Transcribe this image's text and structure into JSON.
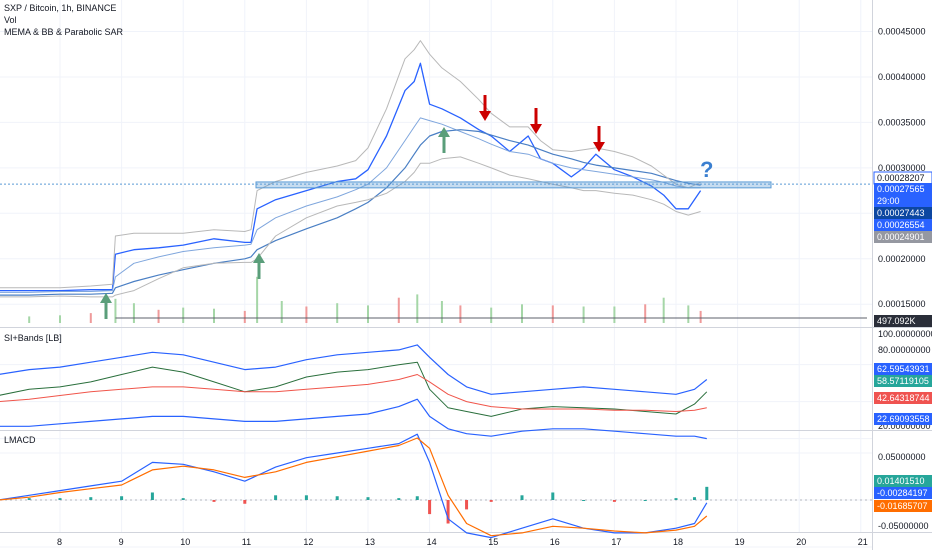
{
  "header": {
    "symbol": "SXP / Bitcoin, 1h, BINANCE",
    "vol_label": "Vol",
    "indicator_label": "MEMA & BB & Parabolic SAR"
  },
  "panes": {
    "rsi_title": "SI+Bands [LB]",
    "macd_title": "LMACD"
  },
  "colors": {
    "price_line": "#2962ff",
    "band": "#b8b8b8",
    "ema": "#4a7fc4",
    "support_zone": "#5b9bd5",
    "down_arrow": "#cc0000",
    "up_arrow": "#5a9e7a",
    "question_mark": "#3a7fd0",
    "rsi_line": "#2a6f3c",
    "rsi_mid": "#f0554a",
    "macd_line": "#2962ff",
    "macd_signal": "#ff6d00",
    "hist_pos": "#26a69a",
    "hist_neg": "#ef5350"
  },
  "price_axis": {
    "ticks": [
      "0.00045000",
      "0.00040000",
      "0.00035000",
      "0.00030000",
      "0.00020000",
      "0.00015000"
    ],
    "tags": [
      {
        "text": "0.00028207",
        "style": "outline"
      },
      {
        "text": "0.00027565",
        "style": "blue"
      },
      {
        "text": "29:00",
        "style": "blue"
      },
      {
        "text": "0.00027443",
        "style": "navy"
      },
      {
        "text": "0.00026554",
        "style": "blue"
      },
      {
        "text": "0.00024901",
        "style": "gray"
      },
      {
        "text": "497.092K",
        "style": "dark"
      }
    ]
  },
  "rsi_axis": {
    "ticks": [
      "100.00000000",
      "80.00000000",
      "20.00000000"
    ],
    "tags": [
      {
        "text": "62.59543931",
        "style": "blue"
      },
      {
        "text": "58.57119105",
        "style": "teal"
      },
      {
        "text": "42.64318744",
        "style": "red"
      },
      {
        "text": "22.69093558",
        "style": "blue"
      }
    ]
  },
  "macd_axis": {
    "ticks": [
      "0.05000000",
      "-0.05000000"
    ],
    "tags": [
      {
        "text": "0.01401510",
        "style": "teal"
      },
      {
        "text": "-0.00284197",
        "style": "blue"
      },
      {
        "text": "-0.01685707",
        "style": "orange"
      }
    ]
  },
  "time_axis": {
    "ticks": [
      "8",
      "9",
      "10",
      "11",
      "12",
      "13",
      "14",
      "15",
      "16",
      "17",
      "18",
      "19",
      "20",
      "21"
    ]
  },
  "annotations": {
    "question": "?"
  },
  "chart_data": [
    {
      "type": "line",
      "pane": "price",
      "x_unit": "day",
      "x": [
        7.0,
        7.5,
        8.0,
        8.5,
        8.85,
        8.9,
        9.2,
        9.6,
        10.0,
        10.5,
        11.0,
        11.1,
        11.2,
        11.5,
        12.0,
        12.5,
        12.8,
        13.0,
        13.3,
        13.6,
        13.75,
        13.85,
        14.0,
        14.2,
        14.5,
        14.8,
        15.0,
        15.3,
        15.6,
        15.8,
        16.0,
        16.3,
        16.5,
        16.7,
        17.0,
        17.3,
        17.6,
        17.8,
        18.0,
        18.2,
        18.4
      ],
      "series": [
        {
          "values": [
            0.000165,
            0.000165,
            0.000165,
            0.000166,
            0.000166,
            0.000205,
            0.00021,
            0.000212,
            0.000215,
            0.000222,
            0.000218,
            0.000218,
            0.000255,
            0.000265,
            0.000275,
            0.000285,
            0.000288,
            0.000298,
            0.000335,
            0.000385,
            0.000395,
            0.000415,
            0.00037,
            0.000365,
            0.000355,
            0.000342,
            0.000335,
            0.000318,
            0.000335,
            0.00031,
            0.000305,
            0.00029,
            0.0003,
            0.000315,
            0.000298,
            0.00029,
            0.00028,
            0.00027,
            0.000255,
            0.000255,
            0.000275
          ]
        },
        {
          "values": [
            0.000163,
            0.000163,
            0.000164,
            0.000164,
            0.000165,
            0.00018,
            0.000195,
            0.000202,
            0.000208,
            0.000212,
            0.000215,
            0.000216,
            0.000232,
            0.000245,
            0.000258,
            0.000268,
            0.000276,
            0.000282,
            0.0003,
            0.00033,
            0.000345,
            0.000355,
            0.000352,
            0.000348,
            0.00034,
            0.000332,
            0.000326,
            0.000318,
            0.000315,
            0.00031,
            0.000305,
            0.0003,
            0.000298,
            0.000296,
            0.000293,
            0.00029,
            0.000287,
            0.000284,
            0.00028,
            0.000278,
            0.000278
          ]
        },
        {
          "values": [
            0.00016,
            0.00016,
            0.000161,
            0.000161,
            0.000162,
            0.000168,
            0.000175,
            0.000182,
            0.000188,
            0.000195,
            0.0002,
            0.000202,
            0.00021,
            0.00022,
            0.000233,
            0.000245,
            0.000255,
            0.000262,
            0.000278,
            0.0003,
            0.000315,
            0.000325,
            0.000335,
            0.00034,
            0.000342,
            0.00034,
            0.000336,
            0.00033,
            0.000325,
            0.00032,
            0.000315,
            0.00031,
            0.000306,
            0.000303,
            0.0003,
            0.000297,
            0.000294,
            0.00029,
            0.000286,
            0.000283,
            0.000281
          ]
        },
        {
          "values": [
            0.000168,
            0.000168,
            0.000168,
            0.00017,
            0.000172,
            0.000225,
            0.000228,
            0.000228,
            0.000228,
            0.000232,
            0.00023,
            0.000232,
            0.000275,
            0.000285,
            0.000295,
            0.000302,
            0.000308,
            0.000322,
            0.000365,
            0.00042,
            0.00043,
            0.00044,
            0.000425,
            0.00041,
            0.000395,
            0.000375,
            0.00036,
            0.000345,
            0.000345,
            0.00033,
            0.00032,
            0.000318,
            0.00032,
            0.000322,
            0.000318,
            0.000312,
            0.000302,
            0.000292,
            0.000282,
            0.000278,
            0.000284
          ]
        },
        {
          "values": [
            0.000158,
            0.000158,
            0.000159,
            0.000158,
            0.000158,
            0.00016,
            0.000165,
            0.000178,
            0.00019,
            0.000195,
            0.000196,
            0.000196,
            0.0002,
            0.000225,
            0.000245,
            0.000258,
            0.000262,
            0.000265,
            0.000272,
            0.000285,
            0.000295,
            0.000305,
            0.000305,
            0.00031,
            0.000312,
            0.000305,
            0.0003,
            0.000292,
            0.000288,
            0.000285,
            0.000282,
            0.000278,
            0.000275,
            0.000275,
            0.000272,
            0.00027,
            0.000265,
            0.00026,
            0.000252,
            0.000248,
            0.000252
          ]
        }
      ]
    },
    {
      "type": "bar",
      "pane": "volume",
      "x_unit": "day",
      "x": [
        7.0,
        7.5,
        8.0,
        8.5,
        8.9,
        9.2,
        9.6,
        10.0,
        10.5,
        11.0,
        11.2,
        11.6,
        12.0,
        12.5,
        13.0,
        13.5,
        13.8,
        14.2,
        14.5,
        15.0,
        15.5,
        16.0,
        16.5,
        17.0,
        17.5,
        17.8,
        18.2,
        18.4
      ],
      "values": [
        80,
        60,
        70,
        90,
        220,
        180,
        120,
        140,
        130,
        110,
        420,
        200,
        150,
        180,
        160,
        230,
        260,
        200,
        160,
        140,
        170,
        160,
        150,
        150,
        170,
        230,
        160,
        110
      ]
    },
    {
      "type": "line",
      "pane": "rsi_bands",
      "x_unit": "day",
      "x": [
        7.0,
        7.5,
        8.0,
        8.5,
        9.0,
        9.5,
        10.0,
        10.5,
        11.0,
        11.5,
        12.0,
        12.5,
        13.0,
        13.5,
        13.8,
        14.0,
        14.3,
        14.6,
        15.0,
        15.5,
        16.0,
        16.5,
        17.0,
        17.5,
        18.0,
        18.3,
        18.5
      ],
      "series": [
        {
          "values": [
            55,
            60,
            62,
            66,
            72,
            78,
            74,
            66,
            58,
            62,
            70,
            74,
            76,
            80,
            82,
            60,
            45,
            42,
            38,
            44,
            46,
            45,
            44,
            42,
            40,
            48,
            58
          ]
        },
        {
          "values": [
            50,
            52,
            55,
            58,
            60,
            62,
            62,
            60,
            58,
            58,
            60,
            62,
            64,
            68,
            72,
            66,
            56,
            50,
            46,
            44,
            44,
            44,
            43,
            43,
            42,
            43,
            45
          ]
        },
        {
          "values": [
            72,
            76,
            78,
            82,
            86,
            90,
            88,
            82,
            76,
            78,
            84,
            88,
            90,
            92,
            96,
            86,
            72,
            62,
            56,
            58,
            60,
            62,
            60,
            58,
            56,
            60,
            68
          ]
        },
        {
          "values": [
            30,
            30,
            32,
            34,
            36,
            38,
            38,
            36,
            34,
            34,
            36,
            38,
            40,
            46,
            52,
            38,
            28,
            24,
            22,
            26,
            28,
            28,
            26,
            24,
            22,
            22,
            20
          ]
        }
      ]
    },
    {
      "type": "line",
      "pane": "macd",
      "x_unit": "day",
      "x": [
        7.0,
        7.5,
        8.0,
        8.5,
        9.0,
        9.5,
        10.0,
        10.5,
        11.0,
        11.5,
        12.0,
        12.5,
        13.0,
        13.5,
        13.8,
        14.0,
        14.3,
        14.6,
        15.0,
        15.5,
        16.0,
        16.5,
        17.0,
        17.5,
        18.0,
        18.3,
        18.5
      ],
      "series": [
        {
          "values": [
            0.0,
            0.005,
            0.01,
            0.015,
            0.02,
            0.04,
            0.038,
            0.03,
            0.02,
            0.035,
            0.045,
            0.05,
            0.055,
            0.06,
            0.07,
            0.04,
            -0.02,
            -0.035,
            -0.04,
            -0.03,
            -0.02,
            -0.03,
            -0.035,
            -0.035,
            -0.03,
            -0.025,
            -0.003
          ]
        },
        {
          "values": [
            0.0,
            0.003,
            0.008,
            0.012,
            0.016,
            0.032,
            0.036,
            0.032,
            0.024,
            0.03,
            0.04,
            0.046,
            0.052,
            0.058,
            0.066,
            0.055,
            0.005,
            -0.025,
            -0.038,
            -0.035,
            -0.028,
            -0.03,
            -0.033,
            -0.035,
            -0.032,
            -0.028,
            -0.017
          ]
        },
        {
          "values": [
            0.0,
            0.002,
            0.002,
            0.003,
            0.004,
            0.008,
            0.002,
            -0.002,
            -0.004,
            0.005,
            0.005,
            0.004,
            0.003,
            0.002,
            0.004,
            -0.015,
            -0.025,
            -0.01,
            -0.002,
            0.005,
            0.008,
            0.0,
            -0.002,
            0.0,
            0.002,
            0.003,
            0.014
          ]
        }
      ]
    }
  ]
}
